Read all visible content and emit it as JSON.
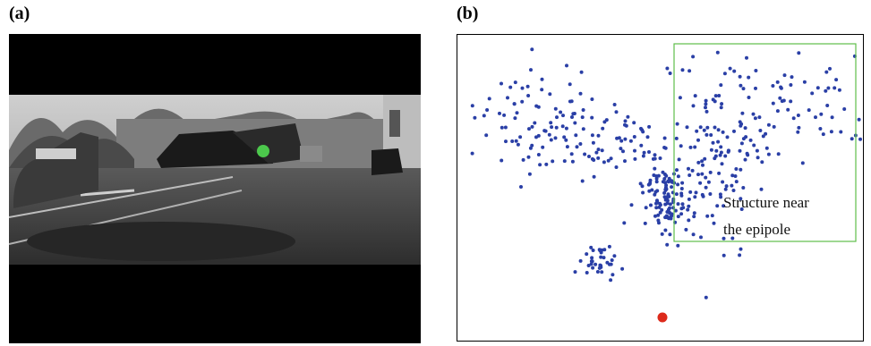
{
  "panels": {
    "a": {
      "label": "(a)"
    },
    "b": {
      "label": "(b)"
    }
  },
  "photo": {
    "marker_color": "#4cc84c"
  },
  "chart_data": {
    "type": "scatter",
    "annotation": [
      "Structure near",
      "the epipole"
    ],
    "colors": {
      "points": "#2a3fa6",
      "epipole": "#dd2a1b",
      "box": "#5fbf4a"
    },
    "xlim": [
      0,
      455
    ],
    "ylim": [
      0,
      344
    ],
    "clusters": [
      {
        "cx": 95,
        "cy": 95,
        "sx": 38,
        "sy": 30,
        "n": 90
      },
      {
        "cx": 175,
        "cy": 120,
        "sx": 30,
        "sy": 20,
        "n": 50
      },
      {
        "cx": 235,
        "cy": 185,
        "sx": 14,
        "sy": 22,
        "n": 120
      },
      {
        "cx": 290,
        "cy": 130,
        "sx": 28,
        "sy": 50,
        "n": 120
      },
      {
        "cx": 370,
        "cy": 70,
        "sx": 50,
        "sy": 30,
        "n": 70
      },
      {
        "cx": 160,
        "cy": 255,
        "sx": 10,
        "sy": 10,
        "n": 35
      }
    ],
    "epipole": {
      "x": 229,
      "y": 316
    },
    "region_box": {
      "x0": 242,
      "y0": 10,
      "x1": 445,
      "y1": 231
    }
  }
}
